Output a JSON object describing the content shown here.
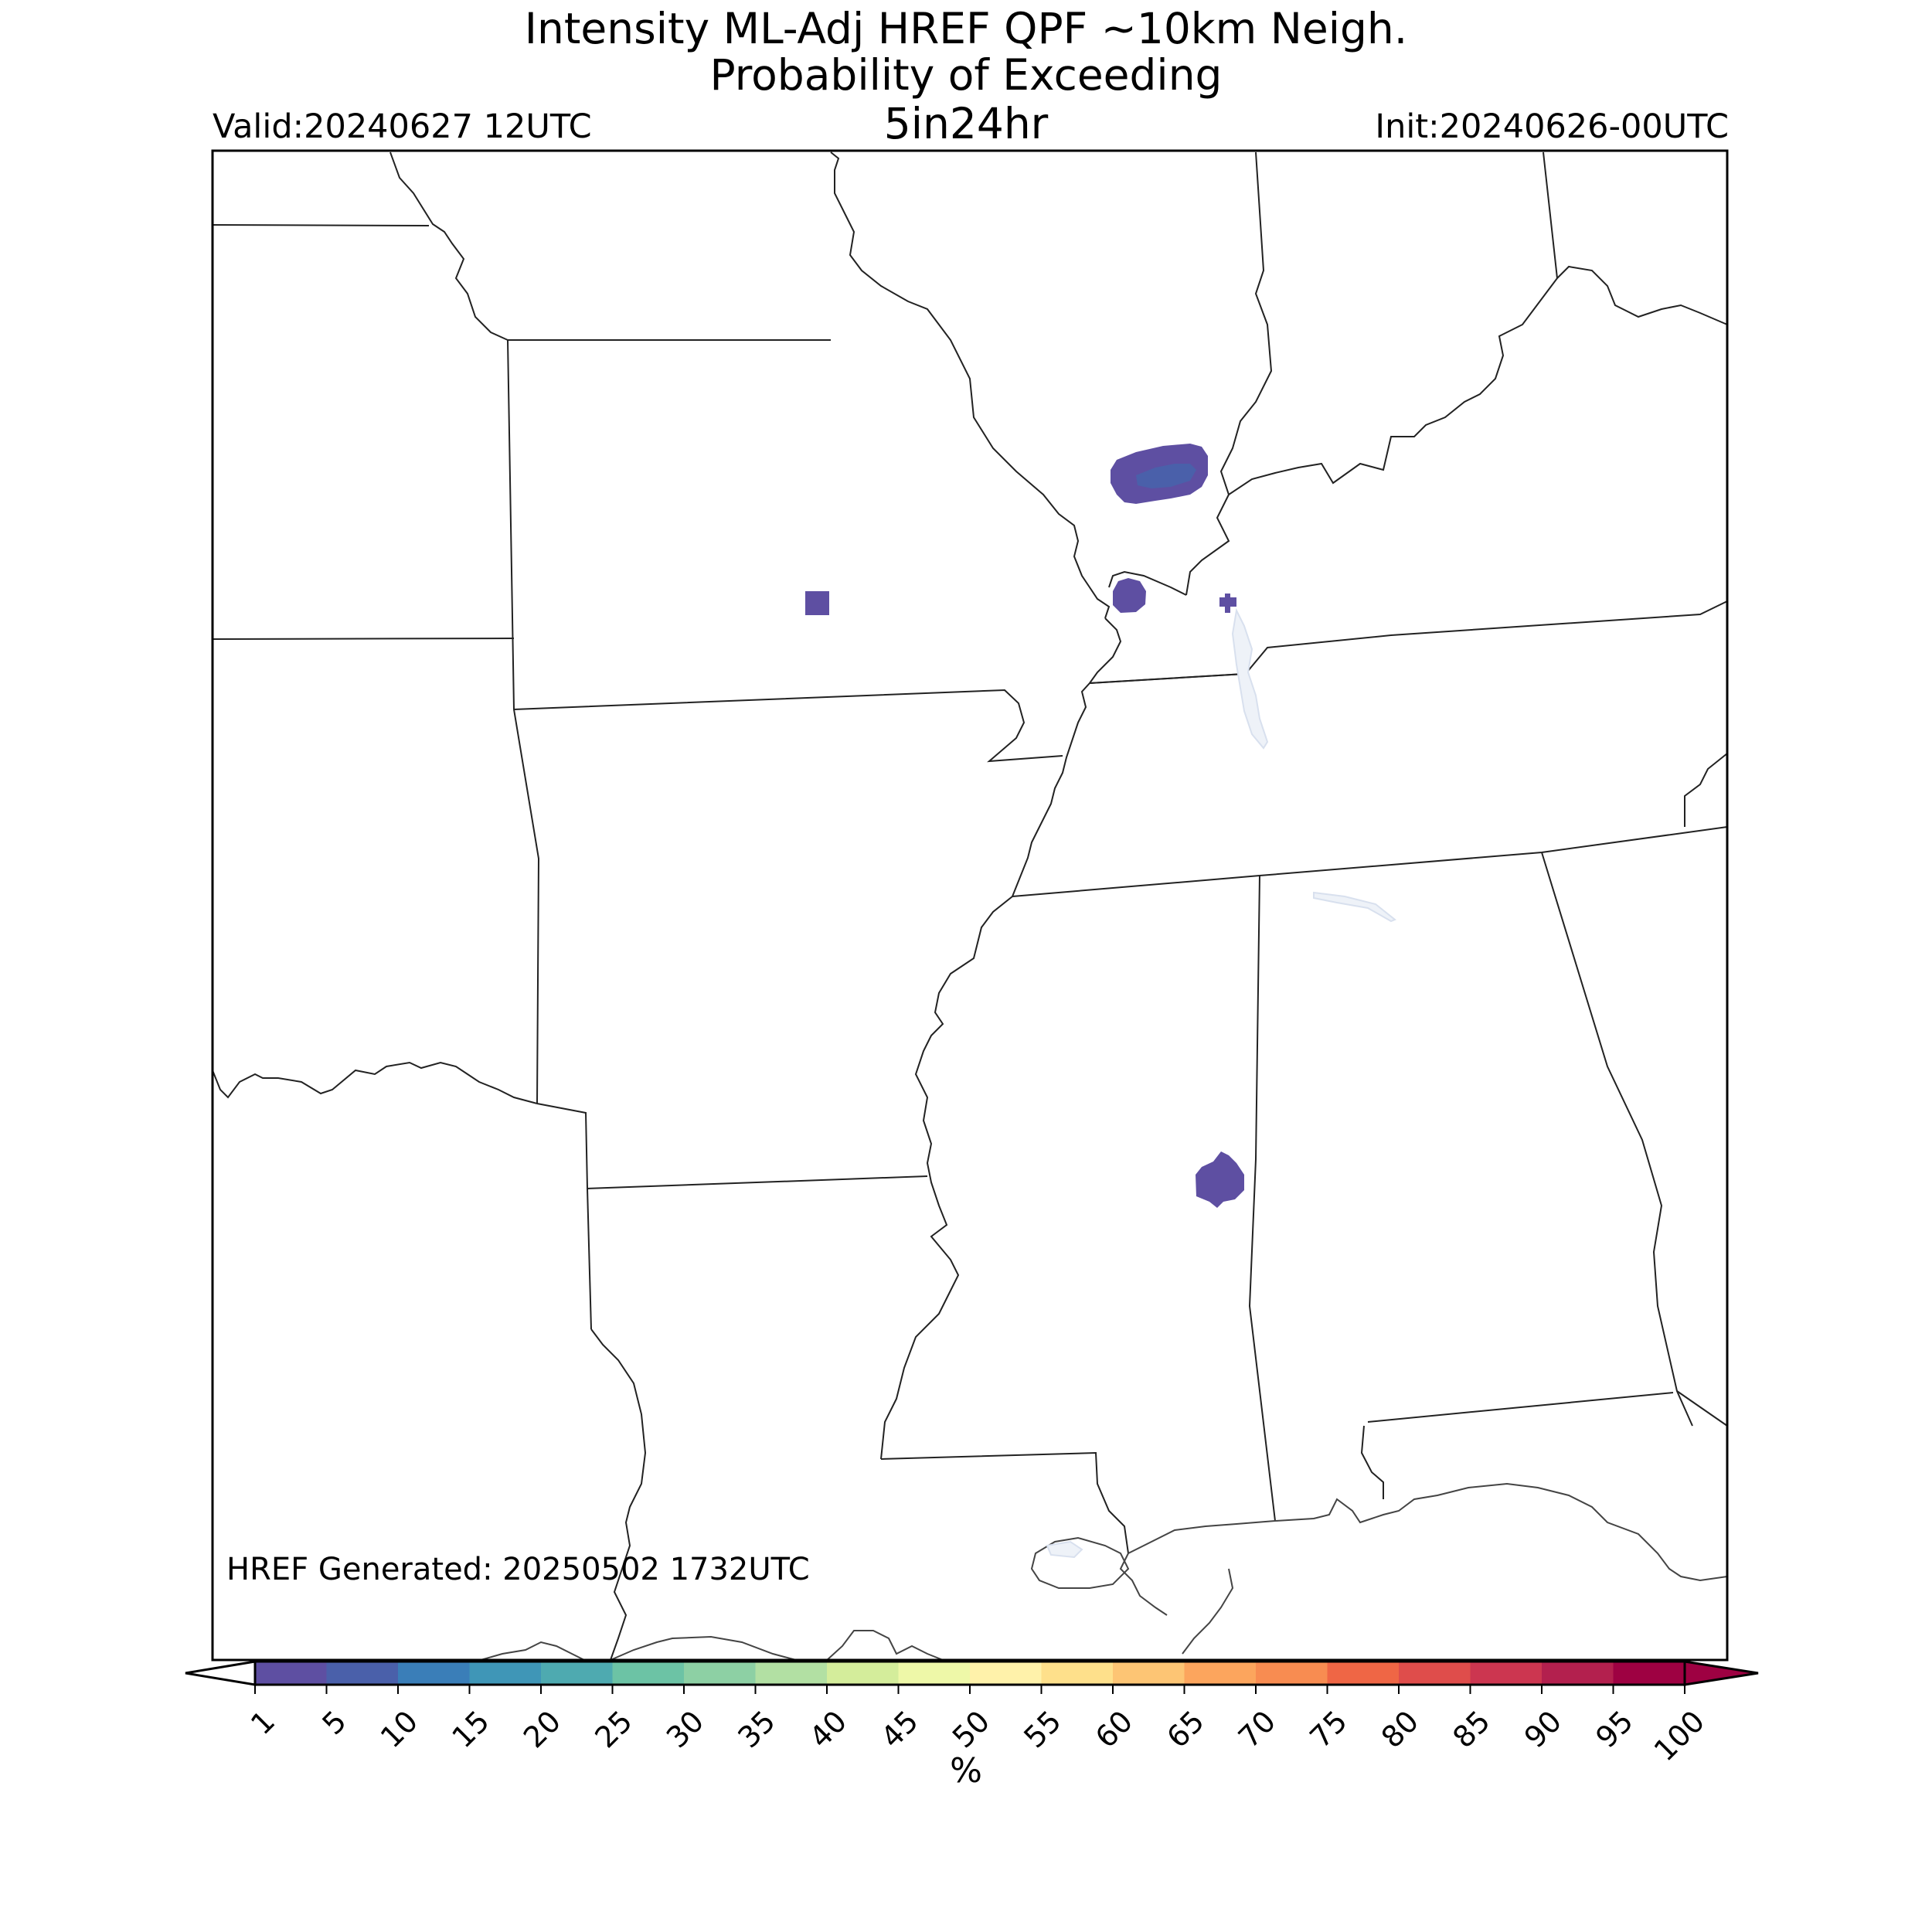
{
  "title": {
    "line1": "Intensity ML-Adj HREF QPF ~10km Neigh.",
    "line2": "Probability of Exceeding",
    "line3": "5in24hr"
  },
  "valid_label": "Valid:20240627 12UTC",
  "init_label": "Init:20240626-00UTC",
  "generated_label": "HREF Generated: 20250502 1732UTC",
  "colorbar": {
    "unit": "%",
    "ticks": [
      "1",
      "5",
      "10",
      "15",
      "20",
      "25",
      "30",
      "35",
      "40",
      "45",
      "50",
      "55",
      "60",
      "65",
      "70",
      "75",
      "80",
      "85",
      "90",
      "95",
      "100"
    ],
    "colors": [
      "#5e4fa2",
      "#4a60aa",
      "#3a7eb8",
      "#3f96b7",
      "#4eaab0",
      "#6cc3a5",
      "#8dd0a4",
      "#b2e0a3",
      "#d4ed9b",
      "#eef8a8",
      "#fff2aa",
      "#fee08b",
      "#fdc574",
      "#fca55d",
      "#f88c51",
      "#ef6645",
      "#df4d4b",
      "#cc3650",
      "#b3204e",
      "#9e0142"
    ],
    "under_color": "#ffffff",
    "over_color": "#9e0142"
  },
  "probability_areas": [
    {
      "name": "northern-cluster",
      "value": 5
    },
    {
      "name": "cluster-core",
      "value": 10
    },
    {
      "name": "isolated-west",
      "value": 1
    },
    {
      "name": "river-cluster",
      "value": 1
    },
    {
      "name": "small-east",
      "value": 1
    },
    {
      "name": "southern-cluster",
      "value": 1
    }
  ]
}
